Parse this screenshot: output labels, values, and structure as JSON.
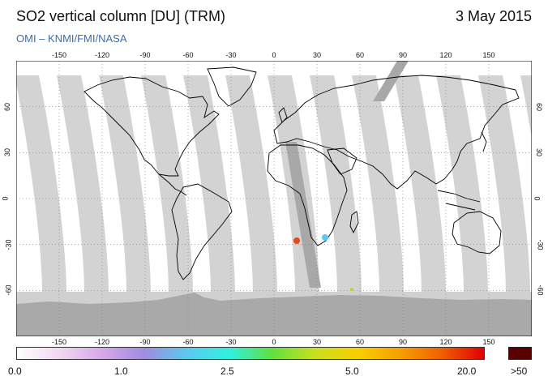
{
  "header": {
    "title": "SO2 vertical column [DU] (TRM)",
    "date": "3 May 2015",
    "credit": "OMI  –  KNMI/FMI/NASA"
  },
  "axes": {
    "lon_ticks": [
      "-150",
      "-120",
      "-90",
      "-60",
      "-30",
      "0",
      "30",
      "60",
      "90",
      "120",
      "150"
    ],
    "lat_ticks": [
      "60",
      "30",
      "0",
      "-30",
      "-60"
    ]
  },
  "colorbar": {
    "labels": [
      "0.0",
      "1.0",
      "2.5",
      "5.0",
      "20.0"
    ],
    "over_label": ">50",
    "over_color": "#5a0000",
    "colors": [
      "#ffffff",
      "#f0d8f0",
      "#d7a8e8",
      "#9f8ce0",
      "#5cc8f0",
      "#30f0e0",
      "#60e040",
      "#c8e020",
      "#f8d000",
      "#f8a000",
      "#f06000",
      "#e00000"
    ]
  },
  "colors": {
    "swath": "#d3d3d3",
    "overlap": "#a8a8a8",
    "antarctica": "#a9a9a9",
    "south_band": "#d0d0d0",
    "coast": "#000000"
  }
}
